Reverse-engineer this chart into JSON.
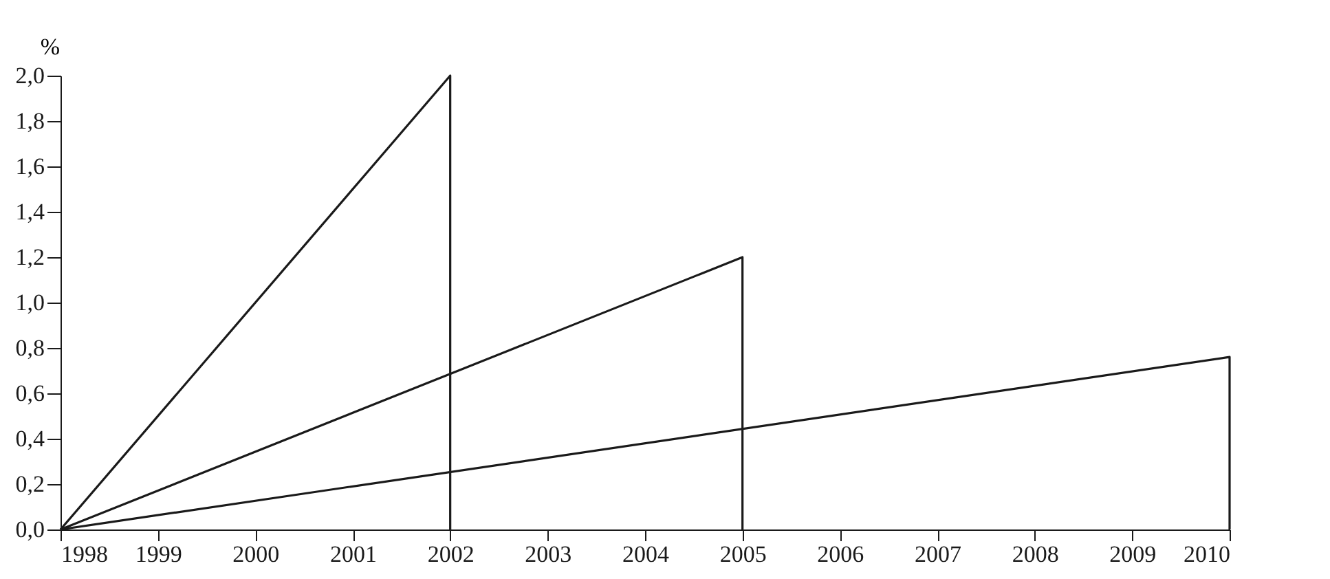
{
  "chart_data": {
    "type": "line",
    "ylabel": "%",
    "xlim": [
      1998,
      2010
    ],
    "xticks": [
      1998,
      1999,
      2000,
      2001,
      2002,
      2003,
      2004,
      2005,
      2006,
      2007,
      2008,
      2009,
      2010
    ],
    "ylim": [
      0,
      2.0
    ],
    "yticks": [
      {
        "value": 0,
        "label": "0,0"
      },
      {
        "value": 0.2,
        "label": "0,2"
      },
      {
        "value": 0.4,
        "label": "0,4"
      },
      {
        "value": 0.6,
        "label": "0,6"
      },
      {
        "value": 0.8,
        "label": "0,8"
      },
      {
        "value": 1.0,
        "label": "1,0"
      },
      {
        "value": 1.2,
        "label": "1,2"
      },
      {
        "value": 1.4,
        "label": "1,4"
      },
      {
        "value": 1.6,
        "label": "1,6"
      },
      {
        "value": 1.8,
        "label": "1,8"
      },
      {
        "value": 2.0,
        "label": "2,0"
      }
    ],
    "series": [
      {
        "color": "#1a1a1a",
        "x": [
          1998,
          2002,
          2002
        ],
        "values": [
          0,
          2.0,
          0
        ]
      },
      {
        "color": "#1a1a1a",
        "x": [
          1998,
          2005,
          2005
        ],
        "values": [
          0,
          1.2,
          0
        ]
      },
      {
        "color": "#1a1a1a",
        "x": [
          1998,
          2010,
          2010
        ],
        "values": [
          0,
          0.76,
          0
        ]
      }
    ],
    "grid": false,
    "marker": "none",
    "line_style": "solid"
  }
}
